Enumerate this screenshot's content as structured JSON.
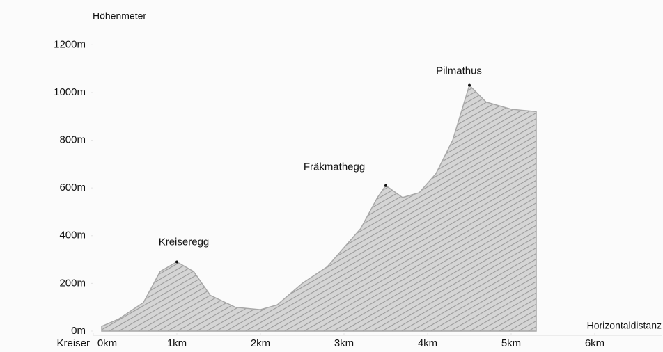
{
  "chart_data": {
    "type": "area",
    "y_label": "Höhenmeter",
    "x_label": "Horizontaldistanz",
    "origin_label": "Kreiser",
    "x": [
      0.1,
      0.3,
      0.6,
      0.8,
      1.0,
      1.2,
      1.4,
      1.7,
      2.0,
      2.2,
      2.5,
      2.8,
      3.0,
      3.2,
      3.4,
      3.5,
      3.7,
      3.9,
      4.1,
      4.3,
      4.5,
      4.7,
      5.0,
      5.3
    ],
    "values": [
      20,
      50,
      120,
      250,
      290,
      250,
      150,
      100,
      90,
      110,
      200,
      270,
      350,
      430,
      560,
      610,
      560,
      580,
      660,
      800,
      1030,
      960,
      930,
      920
    ],
    "color": "#9a9a9a",
    "xlim": [
      0,
      6.8
    ],
    "ylim": [
      0,
      1300
    ],
    "xticks": [
      {
        "value": 0,
        "label": "0km"
      },
      {
        "value": 1,
        "label": "1km"
      },
      {
        "value": 2,
        "label": "2km"
      },
      {
        "value": 3,
        "label": "3km"
      },
      {
        "value": 4,
        "label": "4km"
      },
      {
        "value": 5,
        "label": "5km"
      },
      {
        "value": 6,
        "label": "6km"
      }
    ],
    "yticks": [
      {
        "value": 0,
        "label": "0m"
      },
      {
        "value": 200,
        "label": "200m"
      },
      {
        "value": 400,
        "label": "400m"
      },
      {
        "value": 600,
        "label": "600m"
      },
      {
        "value": 800,
        "label": "800m"
      },
      {
        "value": 1000,
        "label": "1000m"
      },
      {
        "value": 1200,
        "label": "1200m"
      }
    ],
    "annotations": [
      {
        "text": "Kreiseregg",
        "x": 1.0,
        "y": 290
      },
      {
        "text": "Fräkmathegg",
        "x": 3.5,
        "y": 610
      },
      {
        "text": "Pilmathus",
        "x": 4.5,
        "y": 1030
      }
    ]
  }
}
